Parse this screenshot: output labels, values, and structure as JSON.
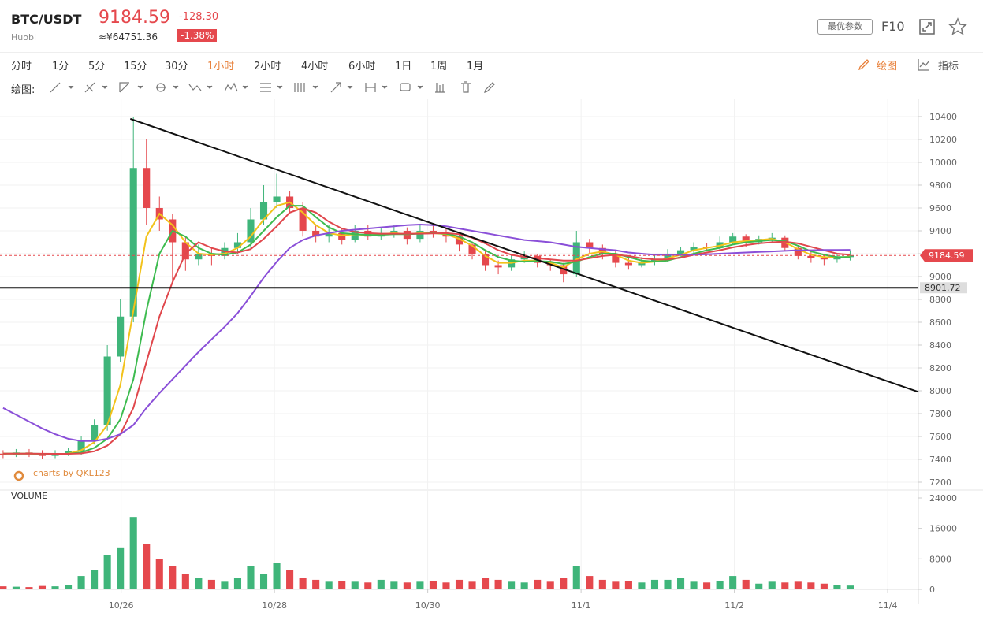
{
  "header": {
    "symbol": "BTC/USDT",
    "exchange": "Huobi",
    "price": "9184.59",
    "change": "-128.30",
    "cny_price": "≈¥64751.36",
    "change_pct": "-1.38%",
    "params_button": "最优参数",
    "f10": "F10"
  },
  "toolbar": {
    "intervals": [
      "分时",
      "1分",
      "5分",
      "15分",
      "30分",
      "1小时",
      "2小时",
      "4小时",
      "6小时",
      "1日",
      "1周",
      "1月"
    ],
    "active_index": 5,
    "draw": "绘图",
    "indicators": "指标",
    "draw_label": "绘图:"
  },
  "chart_data": {
    "type": "candlestick",
    "x": [
      -0.77,
      -0.685,
      -0.6,
      -0.515,
      -0.43,
      -0.345,
      -0.26,
      -0.175,
      -0.09,
      -0.005,
      0.08,
      0.165,
      0.25,
      0.335,
      0.42,
      0.505,
      0.59,
      0.675,
      0.76,
      0.845,
      0.93,
      1.015,
      1.1,
      1.185,
      1.27,
      1.355,
      1.44,
      1.525,
      1.61,
      1.695,
      1.78,
      1.865,
      1.95,
      2.035,
      2.12,
      2.205,
      2.29,
      2.375,
      2.46,
      2.545,
      2.63,
      2.715,
      2.8,
      2.885,
      2.97,
      3.055,
      3.14,
      3.225,
      3.31,
      3.395,
      3.48,
      3.565,
      3.65,
      3.735,
      3.82,
      3.905,
      3.99,
      4.075,
      4.16,
      4.245,
      4.33,
      4.415,
      4.5,
      4.585,
      4.67,
      4.755
    ],
    "open": [
      7450,
      7440,
      7460,
      7450,
      7430,
      7450,
      7470,
      7560,
      7700,
      8300,
      8650,
      9950,
      9600,
      9500,
      9300,
      9150,
      9200,
      9180,
      9250,
      9300,
      9500,
      9650,
      9700,
      9600,
      9400,
      9350,
      9380,
      9320,
      9400,
      9350,
      9380,
      9400,
      9330,
      9400,
      9380,
      9350,
      9280,
      9200,
      9100,
      9080,
      9150,
      9180,
      9120,
      9100,
      9020,
      9300,
      9250,
      9200,
      9120,
      9100,
      9130,
      9150,
      9200,
      9230,
      9260,
      9250,
      9300,
      9350,
      9300,
      9330,
      9340,
      9250,
      9180,
      9160,
      9150,
      9170
    ],
    "high": [
      7480,
      7490,
      7490,
      7480,
      7480,
      7500,
      7600,
      7750,
      8400,
      8800,
      10400,
      10200,
      9700,
      9550,
      9350,
      9280,
      9250,
      9300,
      9380,
      9600,
      9800,
      9900,
      9750,
      9650,
      9450,
      9450,
      9420,
      9450,
      9450,
      9420,
      9450,
      9430,
      9450,
      9450,
      9420,
      9380,
      9300,
      9230,
      9140,
      9200,
      9220,
      9200,
      9150,
      9120,
      9400,
      9330,
      9280,
      9230,
      9160,
      9170,
      9200,
      9240,
      9260,
      9300,
      9290,
      9350,
      9380,
      9370,
      9360,
      9380,
      9360,
      9270,
      9220,
      9190,
      9200,
      9230
    ],
    "low": [
      7410,
      7420,
      7420,
      7400,
      7410,
      7430,
      7440,
      7530,
      7650,
      8250,
      8600,
      9450,
      9400,
      8950,
      9050,
      9100,
      9100,
      9150,
      9200,
      9250,
      9450,
      9600,
      9550,
      9350,
      9300,
      9300,
      9280,
      9300,
      9320,
      9320,
      9340,
      9280,
      9300,
      9340,
      9300,
      9220,
      9150,
      9050,
      9020,
      9050,
      9120,
      9080,
      9050,
      8950,
      9000,
      9200,
      9150,
      9080,
      9060,
      9080,
      9100,
      9130,
      9180,
      9200,
      9220,
      9230,
      9280,
      9260,
      9280,
      9300,
      9220,
      9150,
      9120,
      9100,
      9120,
      9140
    ],
    "close": [
      7440,
      7460,
      7450,
      7430,
      7450,
      7470,
      7560,
      7700,
      8300,
      8650,
      9950,
      9600,
      9500,
      9300,
      9150,
      9200,
      9180,
      9250,
      9300,
      9500,
      9650,
      9700,
      9600,
      9400,
      9350,
      9380,
      9320,
      9400,
      9350,
      9380,
      9400,
      9330,
      9400,
      9380,
      9350,
      9280,
      9200,
      9100,
      9080,
      9150,
      9180,
      9120,
      9100,
      9020,
      9300,
      9250,
      9200,
      9120,
      9100,
      9130,
      9150,
      9200,
      9230,
      9260,
      9250,
      9300,
      9350,
      9300,
      9330,
      9340,
      9250,
      9180,
      9160,
      9150,
      9170,
      9185
    ],
    "volume": [
      800,
      700,
      600,
      900,
      800,
      1200,
      3500,
      5000,
      9000,
      11000,
      19000,
      12000,
      8000,
      6000,
      4000,
      3000,
      2500,
      2000,
      3000,
      6000,
      4000,
      7000,
      5000,
      3000,
      2500,
      2000,
      2200,
      2000,
      1800,
      2500,
      2000,
      1800,
      2000,
      2200,
      1800,
      2500,
      2000,
      3000,
      2500,
      2000,
      1800,
      2500,
      2000,
      3000,
      6000,
      3500,
      2500,
      2000,
      2200,
      1800,
      2500,
      2500,
      3000,
      2000,
      1800,
      2200,
      3500,
      2500,
      1500,
      2000,
      1800,
      2000,
      1800,
      1500,
      1200,
      1000
    ],
    "up_color": "#3fb57a",
    "down_color": "#e5484d",
    "series": [
      {
        "color": "#f2c21b",
        "values": [
          7450,
          7450,
          7450,
          7445,
          7445,
          7450,
          7480,
          7550,
          7700,
          8050,
          8700,
          9350,
          9550,
          9450,
          9300,
          9200,
          9190,
          9200,
          9250,
          9350,
          9500,
          9620,
          9650,
          9560,
          9450,
          9380,
          9360,
          9370,
          9360,
          9370,
          9380,
          9370,
          9380,
          9380,
          9370,
          9330,
          9270,
          9180,
          9120,
          9120,
          9140,
          9140,
          9120,
          9080,
          9150,
          9200,
          9220,
          9190,
          9140,
          9120,
          9130,
          9160,
          9190,
          9230,
          9250,
          9270,
          9300,
          9310,
          9320,
          9330,
          9300,
          9240,
          9190,
          9170,
          9165,
          9175
        ]
      },
      {
        "color": "#3dbb4f",
        "values": [
          7450,
          7450,
          7450,
          7448,
          7447,
          7448,
          7460,
          7500,
          7580,
          7750,
          8100,
          8700,
          9200,
          9400,
          9350,
          9250,
          9200,
          9190,
          9210,
          9280,
          9400,
          9520,
          9620,
          9620,
          9520,
          9430,
          9380,
          9370,
          9365,
          9365,
          9370,
          9370,
          9375,
          9380,
          9375,
          9350,
          9300,
          9230,
          9170,
          9140,
          9130,
          9135,
          9130,
          9110,
          9130,
          9170,
          9200,
          9200,
          9170,
          9140,
          9130,
          9140,
          9170,
          9200,
          9230,
          9250,
          9280,
          9300,
          9310,
          9320,
          9310,
          9270,
          9220,
          9190,
          9170,
          9170
        ]
      },
      {
        "color": "#e0474c",
        "values": [
          7450,
          7450,
          7450,
          7449,
          7448,
          7448,
          7452,
          7470,
          7520,
          7620,
          7850,
          8250,
          8650,
          8950,
          9200,
          9300,
          9250,
          9220,
          9210,
          9240,
          9330,
          9440,
          9560,
          9600,
          9560,
          9480,
          9420,
          9390,
          9380,
          9375,
          9375,
          9375,
          9375,
          9378,
          9380,
          9370,
          9340,
          9290,
          9230,
          9190,
          9170,
          9160,
          9150,
          9140,
          9140,
          9160,
          9180,
          9190,
          9180,
          9160,
          9150,
          9150,
          9165,
          9190,
          9210,
          9230,
          9255,
          9275,
          9290,
          9300,
          9305,
          9290,
          9260,
          9230,
          9200,
          9190
        ]
      },
      {
        "color": "#8a4fd8",
        "values": [
          7850,
          7790,
          7730,
          7670,
          7620,
          7580,
          7560,
          7560,
          7580,
          7620,
          7700,
          7850,
          7980,
          8100,
          8220,
          8340,
          8450,
          8560,
          8680,
          8830,
          8990,
          9130,
          9250,
          9320,
          9360,
          9380,
          9400,
          9410,
          9420,
          9430,
          9440,
          9450,
          9455,
          9450,
          9440,
          9420,
          9400,
          9380,
          9360,
          9340,
          9320,
          9310,
          9300,
          9280,
          9260,
          9250,
          9240,
          9230,
          9210,
          9200,
          9190,
          9190,
          9190,
          9190,
          9195,
          9200,
          9205,
          9210,
          9215,
          9220,
          9225,
          9230,
          9230,
          9232,
          9233,
          9234
        ]
      }
    ],
    "xlim": [
      -0.79,
      5.2
    ],
    "xticks": [
      {
        "value": 0,
        "label": "10/26"
      },
      {
        "value": 1,
        "label": "10/28"
      },
      {
        "value": 2,
        "label": "10/30"
      },
      {
        "value": 3,
        "label": "11/1"
      },
      {
        "value": 4,
        "label": "11/2"
      },
      {
        "value": 5,
        "label": "11/4"
      }
    ],
    "ylim": [
      7131,
      10524
    ],
    "yticks": [
      7200,
      7400,
      7600,
      7800,
      8000,
      8200,
      8400,
      8600,
      8800,
      9000,
      9200,
      9400,
      9600,
      9800,
      10000,
      10200,
      10400
    ],
    "volume_ylim": [
      0,
      24000
    ],
    "volume_yticks": [
      0,
      8000,
      16000,
      24000
    ],
    "volume_label": "VOLUME",
    "watermark": "charts by QKL123",
    "trendline": {
      "x": [
        0.06,
        5.2
      ],
      "y": [
        10380,
        7990
      ]
    },
    "support_level": 8901.72,
    "last_price": 9184.59,
    "grid": true
  }
}
